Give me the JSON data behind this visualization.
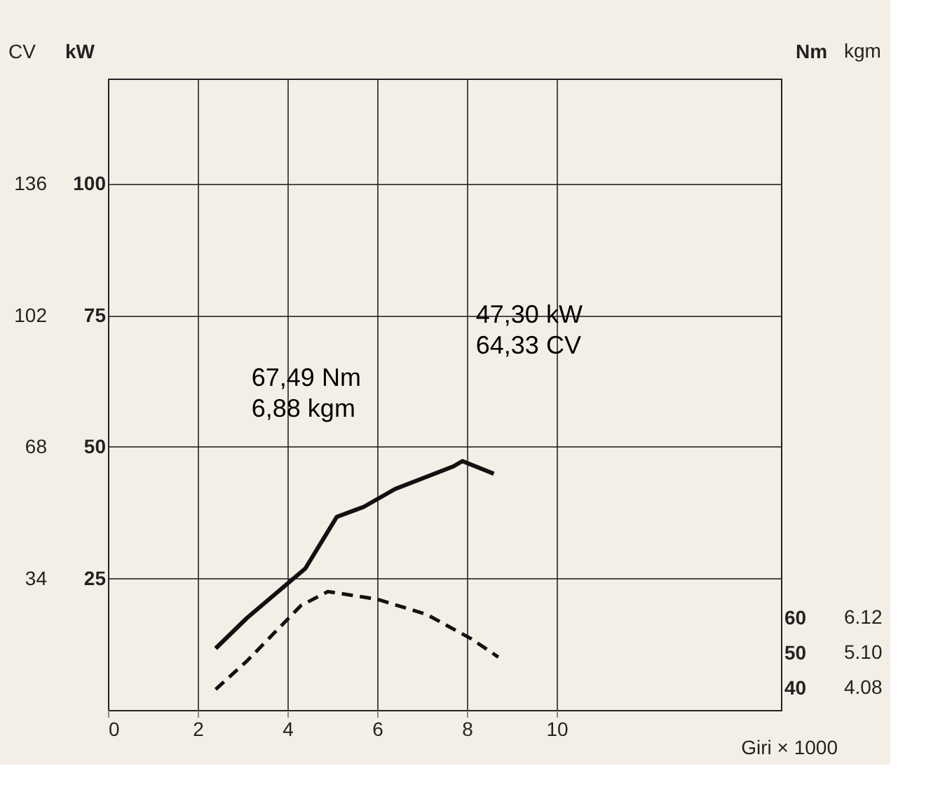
{
  "chart_data": {
    "type": "line",
    "ylabel": "kW",
    "y3label": "CV",
    "y2label": "Nm",
    "xlabel": "Giri × 1000",
    "xlim": [
      0,
      15
    ],
    "xticks": [
      0,
      2,
      4,
      6,
      8,
      10
    ],
    "ylim": [
      0,
      120
    ],
    "yticks": [
      25,
      50,
      75,
      100
    ],
    "y3lim": [
      0,
      163.2
    ],
    "y3ticks": [
      34,
      68,
      102,
      136
    ],
    "y2lim": [
      33.7,
      213.9
    ],
    "y2ticks": [
      40,
      50,
      60
    ],
    "grid": true,
    "marker": "none",
    "series": [
      {
        "x": [
          2.4,
          3.1,
          4.4,
          5.1,
          5.7,
          6.4,
          7.7,
          7.9,
          8.6
        ],
        "values": [
          11.7,
          17.5,
          26.9,
          36.7,
          38.6,
          42,
          46.3,
          47.3,
          44.9
        ],
        "color": "#111111",
        "line_style": "solid"
      },
      {
        "x": [
          2.4,
          3.1,
          4.3,
          4.9,
          6.0,
          7.1,
          8.1,
          8.7
        ],
        "values": [
          39.6,
          47.7,
          63.5,
          67.5,
          65.3,
          61,
          54,
          48.8
        ],
        "color": "#111111",
        "line_style": "dashed",
        "axis": "y2"
      }
    ],
    "annotations": [
      "67,49 Nm\n6,88 kgm",
      "47,30 kW\n64,33 CV",
      "kgm",
      "6.12",
      "5.10",
      "4.08"
    ]
  }
}
